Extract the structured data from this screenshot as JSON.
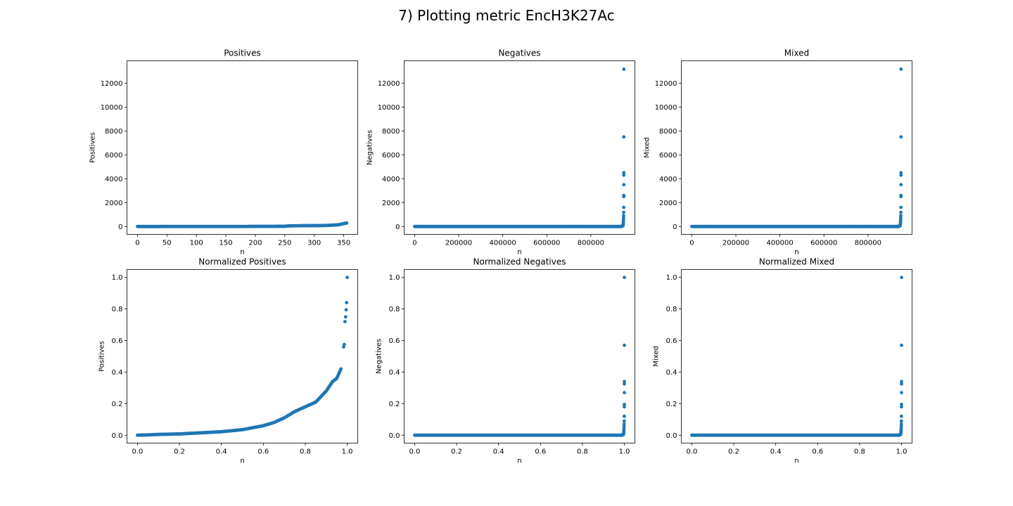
{
  "figure": {
    "suptitle": "7) Plotting metric EncH3K27Ac",
    "marker_color": "#1f77b4"
  },
  "chart_data": [
    {
      "type": "scatter",
      "title": "Positives",
      "xlabel": "n",
      "ylabel": "Positives",
      "xlim": [
        -17.8,
        373.8
      ],
      "ylim": [
        -659,
        13870
      ],
      "xticks": [
        0,
        50,
        100,
        150,
        200,
        250,
        300,
        350
      ],
      "yticks": [
        0,
        2000,
        4000,
        6000,
        8000,
        10000,
        12000
      ],
      "profile": {
        "n_points": 356,
        "x_start": 0,
        "x_end": 355,
        "pattern": "sorted_ascending",
        "knots": [
          [
            0,
            0
          ],
          [
            0.5,
            3
          ],
          [
            0.7,
            15
          ],
          [
            0.73,
            55
          ],
          [
            0.9,
            85
          ],
          [
            0.96,
            140
          ],
          [
            1.0,
            290
          ]
        ]
      },
      "grid": false,
      "legend": "none"
    },
    {
      "type": "scatter",
      "title": "Negatives",
      "xlabel": "n",
      "ylabel": "Negatives",
      "xlim": [
        -47600,
        1000000
      ],
      "ylim": [
        -659,
        13870
      ],
      "xticks": [
        0,
        200000,
        400000,
        600000,
        800000
      ],
      "yticks": [
        0,
        2000,
        4000,
        6000,
        8000,
        10000,
        12000
      ],
      "profile": {
        "n_points": 950000,
        "x_start": 0,
        "x_end": 950000,
        "pattern": "flat_then_spike",
        "flat_value": 0,
        "tail_start_x": 936000,
        "tail": [
          [
            936000,
            0
          ],
          [
            945000,
            50
          ],
          [
            947000,
            200
          ],
          [
            948000,
            500
          ],
          [
            949000,
            1000
          ],
          [
            949500,
            1600
          ]
        ],
        "outliers": [
          [
            949600,
            2500
          ],
          [
            949650,
            2600
          ],
          [
            949700,
            3500
          ],
          [
            949750,
            4300
          ],
          [
            949800,
            4500
          ],
          [
            949850,
            7500
          ],
          [
            949950,
            13170
          ]
        ]
      },
      "grid": false,
      "legend": "none"
    },
    {
      "type": "scatter",
      "title": "Mixed",
      "xlabel": "n",
      "ylabel": "Mixed",
      "xlim": [
        -47600,
        1000000
      ],
      "ylim": [
        -659,
        13870
      ],
      "xticks": [
        0,
        200000,
        400000,
        600000,
        800000
      ],
      "yticks": [
        0,
        2000,
        4000,
        6000,
        8000,
        10000,
        12000
      ],
      "profile": {
        "n_points": 950000,
        "x_start": 0,
        "x_end": 950000,
        "pattern": "flat_then_spike",
        "flat_value": 0,
        "tail_start_x": 936000,
        "tail": [
          [
            936000,
            0
          ],
          [
            945000,
            50
          ],
          [
            947000,
            200
          ],
          [
            948000,
            500
          ],
          [
            949000,
            1000
          ],
          [
            949500,
            1600
          ]
        ],
        "outliers": [
          [
            949600,
            2500
          ],
          [
            949650,
            2600
          ],
          [
            949700,
            3500
          ],
          [
            949750,
            4300
          ],
          [
            949800,
            4500
          ],
          [
            949850,
            7500
          ],
          [
            949950,
            13170
          ]
        ]
      },
      "grid": false,
      "legend": "none"
    },
    {
      "type": "scatter",
      "title": "Normalized Positives",
      "xlabel": "n",
      "ylabel": "Positives",
      "xlim": [
        -0.05,
        1.05
      ],
      "ylim": [
        -0.05,
        1.05
      ],
      "xticks": [
        0.0,
        0.2,
        0.4,
        0.6,
        0.8,
        1.0
      ],
      "yticks": [
        0.0,
        0.2,
        0.4,
        0.6,
        0.8,
        1.0
      ],
      "profile": {
        "n_points": 356,
        "x_start": 0,
        "x_end": 1,
        "pattern": "sorted_ascending",
        "knots": [
          [
            0,
            0
          ],
          [
            0.05,
            0.002
          ],
          [
            0.1,
            0.005
          ],
          [
            0.2,
            0.008
          ],
          [
            0.3,
            0.015
          ],
          [
            0.4,
            0.022
          ],
          [
            0.5,
            0.035
          ],
          [
            0.6,
            0.06
          ],
          [
            0.65,
            0.08
          ],
          [
            0.7,
            0.11
          ],
          [
            0.75,
            0.15
          ],
          [
            0.8,
            0.18
          ],
          [
            0.85,
            0.21
          ],
          [
            0.9,
            0.28
          ],
          [
            0.93,
            0.34
          ],
          [
            0.95,
            0.36
          ],
          [
            0.97,
            0.42
          ]
        ],
        "outliers": [
          [
            0.983,
            0.56
          ],
          [
            0.986,
            0.575
          ],
          [
            0.989,
            0.72
          ],
          [
            0.992,
            0.75
          ],
          [
            0.995,
            0.795
          ],
          [
            0.997,
            0.84
          ],
          [
            1.0,
            1.0
          ]
        ]
      },
      "grid": false,
      "legend": "none"
    },
    {
      "type": "scatter",
      "title": "Normalized Negatives",
      "xlabel": "n",
      "ylabel": "Negatives",
      "xlim": [
        -0.05,
        1.05
      ],
      "ylim": [
        -0.05,
        1.05
      ],
      "xticks": [
        0.0,
        0.2,
        0.4,
        0.6,
        0.8,
        1.0
      ],
      "yticks": [
        0.0,
        0.2,
        0.4,
        0.6,
        0.8,
        1.0
      ],
      "profile": {
        "n_points": 950000,
        "x_start": 0,
        "x_end": 1,
        "pattern": "flat_then_spike",
        "flat_value": 0,
        "tail_start_x": 0.985,
        "tail": [
          [
            0.985,
            0
          ],
          [
            0.995,
            0.004
          ],
          [
            0.997,
            0.015
          ],
          [
            0.998,
            0.04
          ],
          [
            0.999,
            0.08
          ],
          [
            0.9995,
            0.12
          ]
        ],
        "outliers": [
          [
            0.9996,
            0.18
          ],
          [
            0.9997,
            0.195
          ],
          [
            0.9998,
            0.27
          ],
          [
            0.9998,
            0.325
          ],
          [
            0.9999,
            0.34
          ],
          [
            0.9999,
            0.57
          ],
          [
            1.0,
            1.0
          ]
        ]
      },
      "grid": false,
      "legend": "none"
    },
    {
      "type": "scatter",
      "title": "Normalized Mixed",
      "xlabel": "n",
      "ylabel": "Mixed",
      "xlim": [
        -0.05,
        1.05
      ],
      "ylim": [
        -0.05,
        1.05
      ],
      "xticks": [
        0.0,
        0.2,
        0.4,
        0.6,
        0.8,
        1.0
      ],
      "yticks": [
        0.0,
        0.2,
        0.4,
        0.6,
        0.8,
        1.0
      ],
      "profile": {
        "n_points": 950000,
        "x_start": 0,
        "x_end": 1,
        "pattern": "flat_then_spike",
        "flat_value": 0,
        "tail_start_x": 0.985,
        "tail": [
          [
            0.985,
            0
          ],
          [
            0.995,
            0.004
          ],
          [
            0.997,
            0.015
          ],
          [
            0.998,
            0.04
          ],
          [
            0.999,
            0.08
          ],
          [
            0.9995,
            0.12
          ]
        ],
        "outliers": [
          [
            0.9996,
            0.18
          ],
          [
            0.9997,
            0.195
          ],
          [
            0.9998,
            0.27
          ],
          [
            0.9998,
            0.325
          ],
          [
            0.9999,
            0.34
          ],
          [
            0.9999,
            0.57
          ],
          [
            1.0,
            1.0
          ]
        ]
      },
      "grid": false,
      "legend": "none"
    }
  ]
}
